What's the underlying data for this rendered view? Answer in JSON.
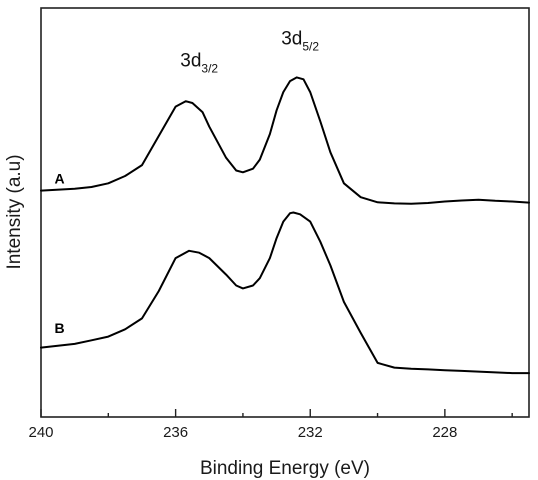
{
  "chart_data": {
    "type": "line",
    "xlabel": "Binding Energy (eV)",
    "ylabel": "Intensity (a.u)",
    "xlim": [
      240,
      225.5
    ],
    "x_reversed": true,
    "xticks": [
      "240",
      "236",
      "232",
      "228"
    ],
    "xtick_values": [
      240,
      236,
      232,
      228
    ],
    "minor_xticks": [
      238,
      234,
      230,
      226
    ],
    "ylim": [
      0,
      100
    ],
    "yticks_visible": false,
    "grid": false,
    "legend": "none",
    "series": [
      {
        "name": "A",
        "label_anchor": {
          "x": 239.6,
          "y": 58
        },
        "x": [
          240,
          239,
          238.5,
          238,
          237.5,
          237,
          236.5,
          236,
          235.7,
          235.5,
          235.2,
          235,
          234.5,
          234.2,
          234,
          233.7,
          233.5,
          233.2,
          233,
          232.8,
          232.6,
          232.4,
          232.2,
          232,
          231.7,
          231.4,
          231,
          230.5,
          230,
          229.5,
          229,
          228.5,
          228,
          227.5,
          227,
          226.5,
          226,
          225.5
        ],
        "values": [
          56,
          56.5,
          57,
          58,
          60,
          63,
          71,
          79,
          80.5,
          80,
          77.5,
          73.5,
          65,
          61.5,
          61,
          62,
          64.5,
          71.5,
          78,
          83,
          86,
          87,
          86.5,
          83,
          75,
          66.5,
          58,
          54.2,
          52.8,
          52.5,
          52.4,
          52.6,
          53,
          53.3,
          53.5,
          53.2,
          53,
          52.7
        ]
      },
      {
        "name": "B",
        "label_anchor": {
          "x": 239.6,
          "y": 17
        },
        "x": [
          240,
          239,
          238.5,
          238,
          237.5,
          237,
          236.5,
          236,
          235.6,
          235.3,
          235,
          234.5,
          234.2,
          234,
          233.7,
          233.5,
          233.2,
          233,
          232.8,
          232.6,
          232.5,
          232.3,
          232,
          231.7,
          231.4,
          231,
          230.5,
          230,
          229.5,
          229,
          228.5,
          228,
          227.5,
          227,
          226.5,
          226,
          225.5
        ],
        "values": [
          13,
          14,
          15,
          16,
          18,
          21,
          28.5,
          37.5,
          39.5,
          39,
          37.5,
          33,
          30,
          29.2,
          30,
          32,
          37.5,
          43,
          47.5,
          49.8,
          50,
          49.5,
          47.5,
          42,
          35.5,
          25.5,
          17,
          8.8,
          7.5,
          7.2,
          7,
          6.8,
          6.6,
          6.4,
          6.2,
          6,
          6
        ]
      }
    ],
    "annotations": [
      {
        "base": "3d",
        "sub": "3/2",
        "x": 235.3,
        "y": 90
      },
      {
        "base": "3d",
        "sub": "5/2",
        "x": 232.3,
        "y": 96
      }
    ]
  }
}
